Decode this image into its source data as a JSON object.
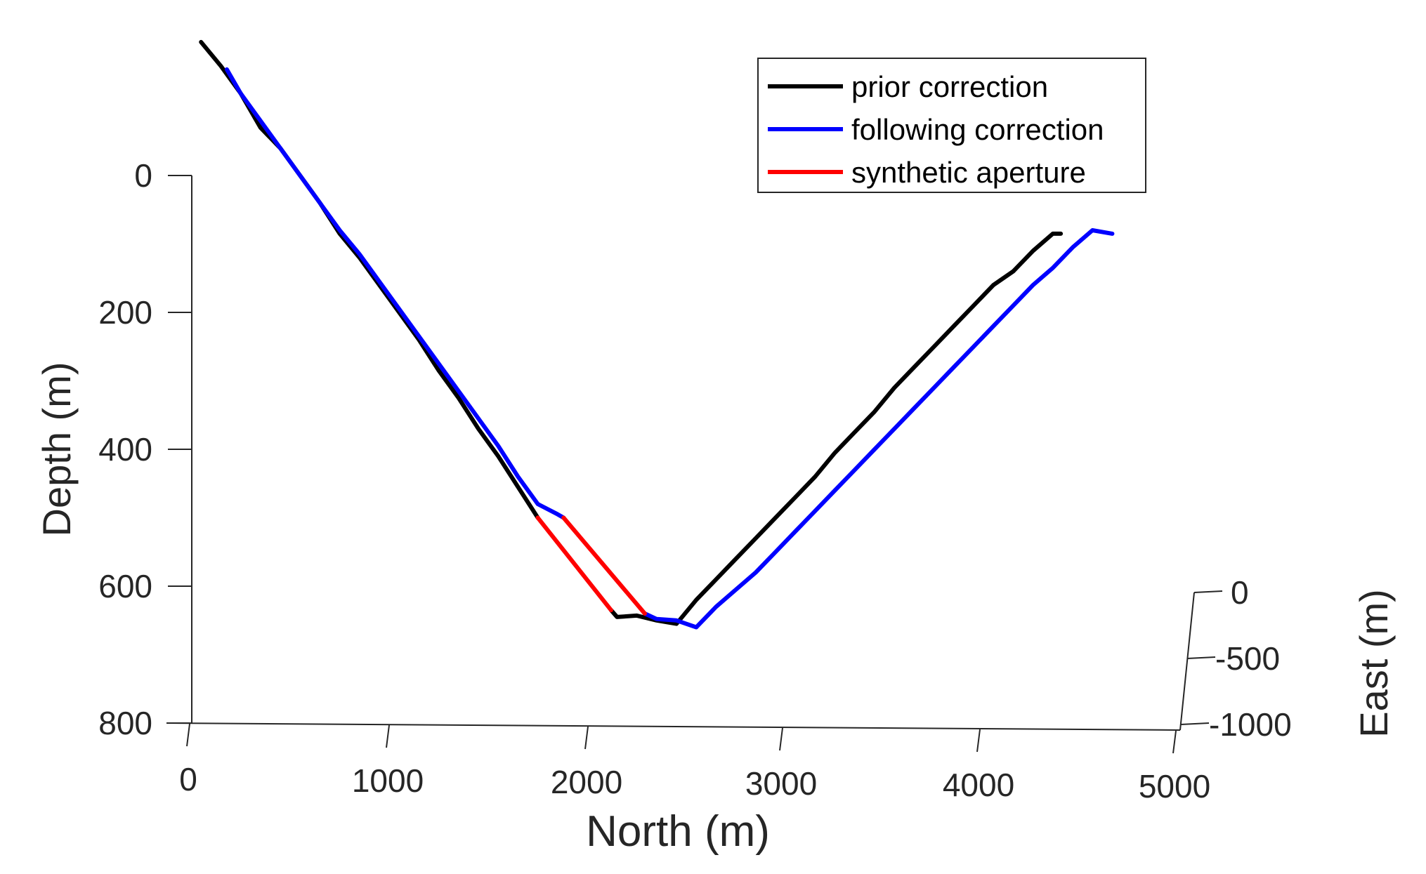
{
  "chart_data": {
    "type": "line",
    "projection": "3d",
    "xlabel": "North (m)",
    "ylabel": "Depth (m)",
    "zlabel": "East (m)",
    "x_ticks": [
      "0",
      "1000",
      "2000",
      "3000",
      "4000",
      "5000"
    ],
    "y_ticks": [
      "0",
      "200",
      "400",
      "600",
      "800"
    ],
    "z_ticks": [
      "0",
      "-500",
      "-1000"
    ],
    "xlim": [
      0,
      5000
    ],
    "ylim": [
      800,
      -200
    ],
    "zlim": [
      -1000,
      0
    ],
    "grid": false,
    "legend_position": "top-right",
    "legend": [
      {
        "label": "prior correction",
        "color": "#000000"
      },
      {
        "label": "following correction",
        "color": "#0000ff"
      },
      {
        "label": "synthetic aperture",
        "color": "#ff0000"
      }
    ],
    "series": [
      {
        "name": "prior correction",
        "color": "#000000",
        "segments": [
          {
            "north": [
              100,
              200,
              300,
              400,
              500,
              600,
              700,
              800,
              900,
              1000,
              1100,
              1200,
              1300,
              1400,
              1500,
              1600,
              1700,
              1800
            ],
            "depth": [
              -195,
              -160,
              -120,
              -70,
              -40,
              0,
              40,
              85,
              120,
              160,
              200,
              240,
              285,
              325,
              370,
              410,
              455,
              500
            ]
          },
          {
            "north": [
              2170,
              2200,
              2300,
              2400,
              2500,
              2600,
              2700,
              2800,
              2900,
              3000,
              3100,
              3200,
              3300,
              3400,
              3500,
              3600,
              3700,
              3800,
              3900,
              4000,
              4100,
              4200,
              4300,
              4400,
              4440
            ],
            "depth": [
              635,
              645,
              643,
              650,
              655,
              620,
              590,
              560,
              530,
              500,
              470,
              440,
              405,
              375,
              345,
              310,
              280,
              250,
              220,
              190,
              160,
              140,
              110,
              85,
              85
            ]
          }
        ]
      },
      {
        "name": "following correction",
        "color": "#0000ff",
        "segments": [
          {
            "north": [
              230,
              300,
              400,
              500,
              600,
              700,
              800,
              900,
              1000,
              1100,
              1200,
              1300,
              1400,
              1500,
              1600,
              1700,
              1800,
              1900,
              1930
            ],
            "depth": [
              -155,
              -120,
              -80,
              -40,
              0,
              40,
              80,
              115,
              155,
              195,
              235,
              275,
              315,
              355,
              395,
              440,
              480,
              495,
              500
            ]
          },
          {
            "north": [
              2340,
              2400,
              2500,
              2600,
              2700,
              2800,
              2900,
              3000,
              3100,
              3200,
              3300,
              3400,
              3500,
              3600,
              3700,
              3800,
              3900,
              4000,
              4100,
              4200,
              4300,
              4400,
              4500,
              4600,
              4700
            ],
            "depth": [
              640,
              648,
              650,
              660,
              630,
              605,
              580,
              550,
              520,
              490,
              460,
              430,
              400,
              370,
              340,
              310,
              280,
              250,
              220,
              190,
              160,
              135,
              105,
              80,
              85
            ]
          }
        ]
      },
      {
        "name": "synthetic aperture",
        "color": "#ff0000",
        "segments": [
          {
            "north": [
              1800,
              2170
            ],
            "depth": [
              500,
              635
            ]
          },
          {
            "north": [
              1930,
              2340
            ],
            "depth": [
              500,
              640
            ]
          }
        ]
      }
    ]
  }
}
